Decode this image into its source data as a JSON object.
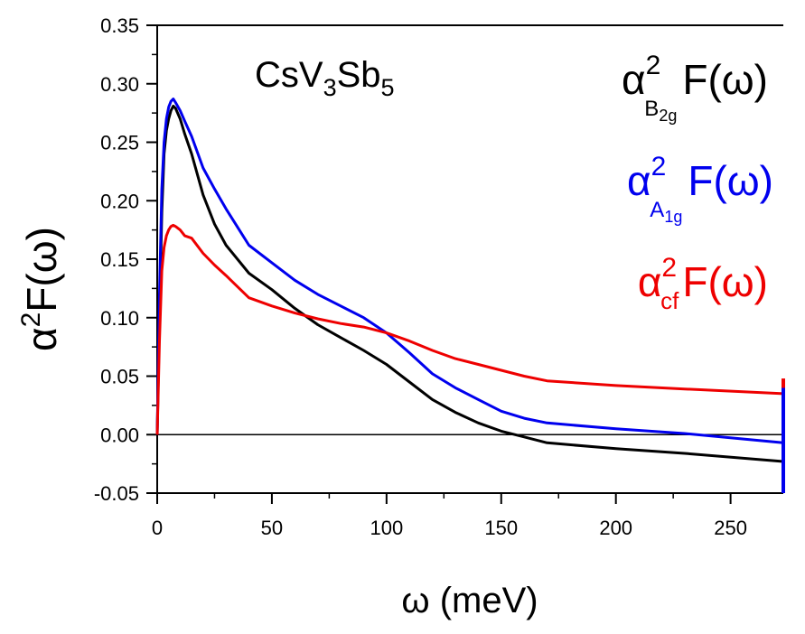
{
  "chart_data": {
    "type": "line",
    "title": "CsV3Sb5",
    "title_parts": {
      "main1": "CsV",
      "sub1": "3",
      "main2": "Sb",
      "sub2": "5"
    },
    "xlabel": "ω (meV)",
    "xlabel_parts": {
      "symbol": "ω",
      "unit": " (meV)"
    },
    "ylabel": "α2F(ω)",
    "ylabel_parts": {
      "alpha": "α",
      "sup": "2",
      "func": "F(ω)"
    },
    "xlim": [
      0,
      273
    ],
    "ylim": [
      -0.05,
      0.35
    ],
    "x_ticks": [
      0,
      50,
      100,
      150,
      200,
      250
    ],
    "x_tick_labels": [
      "0",
      "50",
      "100",
      "150",
      "200",
      "250"
    ],
    "y_ticks": [
      -0.05,
      0.0,
      0.05,
      0.1,
      0.15,
      0.2,
      0.25,
      0.3,
      0.35
    ],
    "y_tick_labels": [
      "-0.05",
      "0.00",
      "0.05",
      "0.10",
      "0.15",
      "0.20",
      "0.25",
      "0.30",
      "0.35"
    ],
    "zero_line": true,
    "grid": false,
    "legend_position": "right",
    "series": [
      {
        "name": "α²B2gF(ω)",
        "label_parts": {
          "alpha": "α",
          "sup": "2",
          "sub": "B",
          "subsub": "2g",
          "func": "F(ω)"
        },
        "color": "#000000",
        "x": [
          0,
          1,
          2,
          3,
          4,
          5,
          6,
          7,
          8,
          10,
          12,
          15,
          20,
          25,
          30,
          40,
          50,
          60,
          70,
          80,
          90,
          100,
          110,
          120,
          130,
          140,
          150,
          160,
          170,
          200,
          230,
          273
        ],
        "y": [
          0.0,
          0.1,
          0.19,
          0.24,
          0.26,
          0.27,
          0.277,
          0.281,
          0.279,
          0.27,
          0.257,
          0.24,
          0.205,
          0.18,
          0.162,
          0.138,
          0.124,
          0.108,
          0.094,
          0.083,
          0.072,
          0.06,
          0.045,
          0.03,
          0.019,
          0.01,
          0.003,
          -0.002,
          -0.007,
          -0.012,
          -0.016,
          -0.023
        ]
      },
      {
        "name": "α²A1gF(ω)",
        "label_parts": {
          "alpha": "α",
          "sup": "2",
          "sub": "A",
          "subsub": "1g",
          "func": "F(ω)"
        },
        "color": "#0000ee",
        "x": [
          0,
          1,
          2,
          3,
          4,
          5,
          6,
          7,
          8,
          10,
          12,
          15,
          20,
          25,
          30,
          40,
          50,
          60,
          70,
          80,
          90,
          100,
          110,
          120,
          130,
          140,
          150,
          160,
          170,
          200,
          230,
          273
        ],
        "y": [
          0.0,
          0.12,
          0.21,
          0.25,
          0.27,
          0.28,
          0.285,
          0.287,
          0.284,
          0.277,
          0.268,
          0.255,
          0.228,
          0.21,
          0.193,
          0.162,
          0.147,
          0.132,
          0.12,
          0.11,
          0.1,
          0.087,
          0.07,
          0.052,
          0.04,
          0.03,
          0.02,
          0.014,
          0.01,
          0.005,
          0.001,
          -0.007
        ]
      },
      {
        "name": "α²cfF(ω)",
        "label_parts": {
          "alpha": "α",
          "sup": "2",
          "sub": "cf",
          "subsub": "",
          "func": "F(ω)"
        },
        "color": "#ee0000",
        "x": [
          0,
          1,
          2,
          3,
          4,
          5,
          6,
          7,
          8,
          10,
          12,
          15,
          20,
          25,
          30,
          40,
          50,
          60,
          70,
          80,
          90,
          100,
          110,
          120,
          130,
          140,
          150,
          160,
          170,
          200,
          230,
          273
        ],
        "y": [
          0.0,
          0.08,
          0.14,
          0.16,
          0.17,
          0.175,
          0.178,
          0.179,
          0.178,
          0.175,
          0.17,
          0.168,
          0.155,
          0.145,
          0.136,
          0.117,
          0.11,
          0.104,
          0.099,
          0.095,
          0.092,
          0.087,
          0.08,
          0.072,
          0.065,
          0.06,
          0.055,
          0.05,
          0.046,
          0.042,
          0.039,
          0.035
        ]
      }
    ]
  }
}
